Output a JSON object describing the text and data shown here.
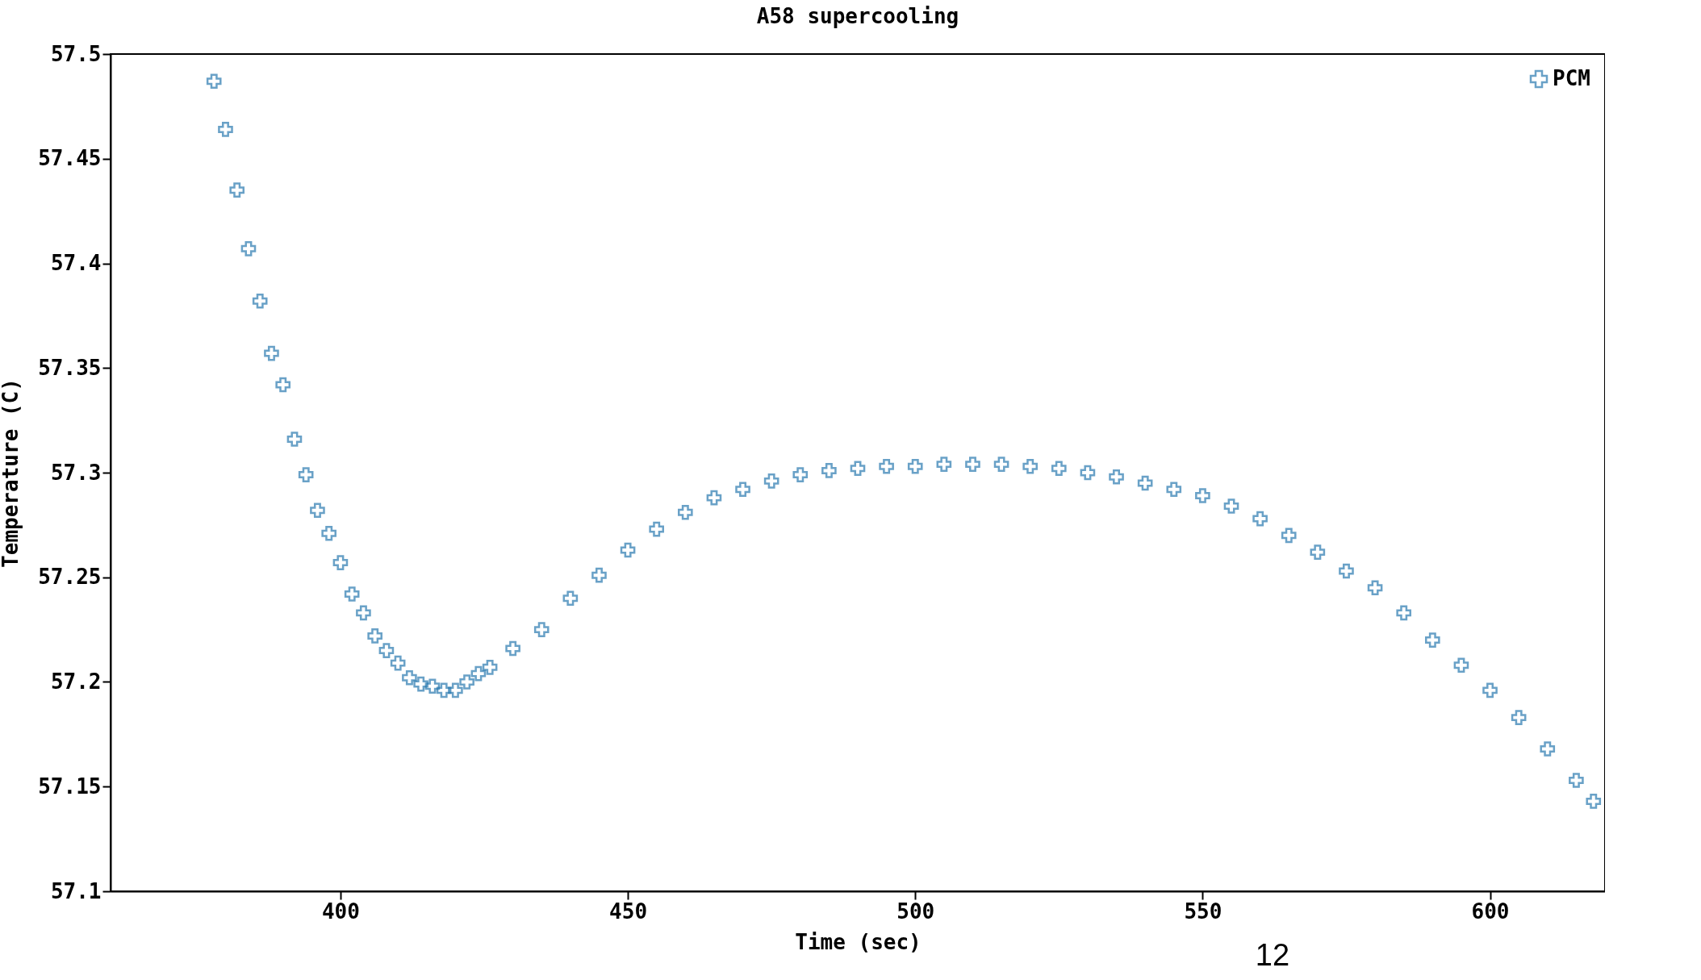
{
  "chart_data": {
    "type": "scatter",
    "title": "A58 supercooling",
    "xlabel": "Time (sec)",
    "ylabel": "Temperature (C)",
    "x": [
      378,
      380,
      382,
      384,
      386,
      388,
      390,
      392,
      394,
      396,
      398,
      400,
      402,
      404,
      406,
      408,
      410,
      412,
      414,
      416,
      418,
      420,
      422,
      424,
      426,
      430,
      435,
      440,
      445,
      450,
      455,
      460,
      465,
      470,
      475,
      480,
      485,
      490,
      495,
      500,
      505,
      510,
      515,
      520,
      525,
      530,
      535,
      540,
      545,
      550,
      555,
      560,
      565,
      570,
      575,
      580,
      585,
      590,
      595,
      600,
      605,
      610,
      615,
      618
    ],
    "series": [
      {
        "name": "PCM",
        "color": "#2a7ab0",
        "values": [
          57.487,
          57.464,
          57.435,
          57.407,
          57.382,
          57.357,
          57.342,
          57.316,
          57.299,
          57.282,
          57.271,
          57.257,
          57.242,
          57.233,
          57.222,
          57.215,
          57.209,
          57.202,
          57.199,
          57.198,
          57.196,
          57.196,
          57.2,
          57.204,
          57.207,
          57.216,
          57.225,
          57.24,
          57.251,
          57.263,
          57.273,
          57.281,
          57.288,
          57.292,
          57.296,
          57.299,
          57.301,
          57.302,
          57.303,
          57.303,
          57.304,
          57.304,
          57.304,
          57.303,
          57.302,
          57.3,
          57.298,
          57.295,
          57.292,
          57.289,
          57.284,
          57.278,
          57.27,
          57.262,
          57.253,
          57.245,
          57.233,
          57.22,
          57.208,
          57.196,
          57.183,
          57.168,
          57.153,
          57.143
        ]
      }
    ],
    "xlim": [
      360,
      620
    ],
    "xticks": [
      400,
      450,
      500,
      550,
      600
    ],
    "ylim": [
      57.1,
      57.5
    ],
    "yticks": [
      57.1,
      57.15,
      57.2,
      57.25,
      57.3,
      57.35,
      57.4,
      57.45,
      57.5
    ],
    "marker": "cross",
    "legend": "top right",
    "grid": false,
    "annotations": [
      "12"
    ]
  }
}
